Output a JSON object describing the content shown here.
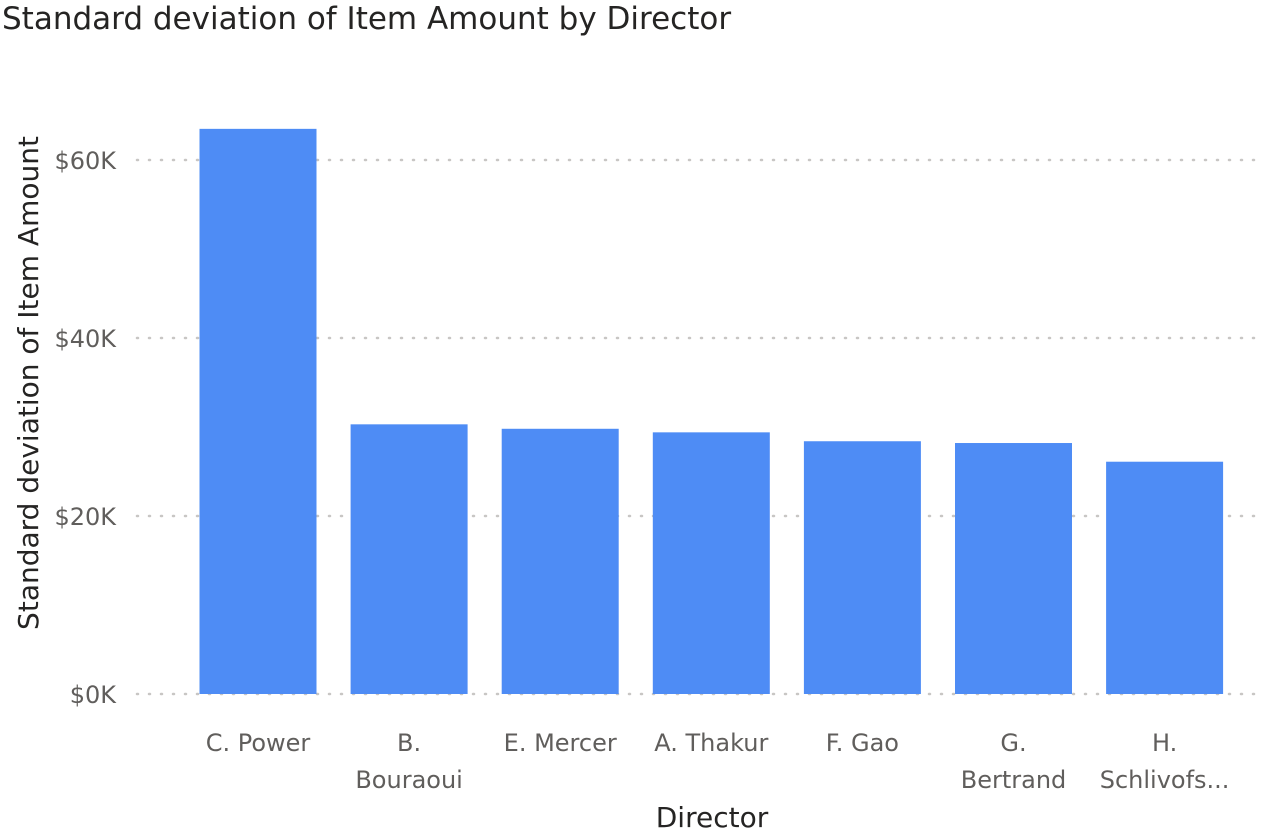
{
  "chart_data": {
    "type": "bar",
    "title": "Standard deviation of Item Amount by Director",
    "xlabel": "Director",
    "ylabel": "Standard deviation of Item Amount",
    "categories": [
      [
        "C. Power"
      ],
      [
        "B.",
        "Bouraoui"
      ],
      [
        "E. Mercer"
      ],
      [
        "A. Thakur"
      ],
      [
        "F. Gao"
      ],
      [
        "G.",
        "Bertrand"
      ],
      [
        "H.",
        "Schlivofs..."
      ]
    ],
    "values": [
      63500,
      30300,
      29800,
      29400,
      28400,
      28200,
      26100
    ],
    "ylim": [
      0,
      70000
    ],
    "yticks": [
      {
        "value": 0,
        "label": "$0K"
      },
      {
        "value": 20000,
        "label": "$20K"
      },
      {
        "value": 40000,
        "label": "$40K"
      },
      {
        "value": 60000,
        "label": "$60K"
      }
    ],
    "grid": true,
    "legend": "none",
    "bar_color": "#4e8cf5"
  }
}
